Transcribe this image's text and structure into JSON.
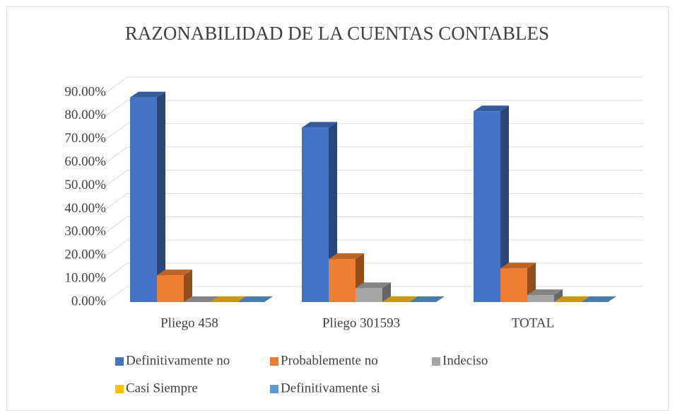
{
  "chart_data": {
    "type": "bar3d",
    "title": "RAZONABILIDAD DE LA CUENTAS CONTABLES",
    "categories": [
      "Pliego 458",
      "Pliego 301593",
      "TOTAL"
    ],
    "series": [
      {
        "name": "Definitivamente no",
        "color": "#4472c4",
        "values": [
          88,
          75,
          82
        ]
      },
      {
        "name": "Probablemente no",
        "color": "#ed7d31",
        "values": [
          11.5,
          18.5,
          14.5
        ]
      },
      {
        "name": "Indeciso",
        "color": "#a5a5a5",
        "values": [
          0,
          6,
          3
        ]
      },
      {
        "name": "Casi Siempre",
        "color": "#ffc000",
        "values": [
          0,
          0,
          0
        ]
      },
      {
        "name": "Definitivamente si",
        "color": "#5b9bd5",
        "values": [
          0,
          0,
          0
        ]
      }
    ],
    "ylim": [
      0,
      90
    ],
    "yticks": [
      {
        "value": 0,
        "label": "0.00%"
      },
      {
        "value": 10,
        "label": "10.00%"
      },
      {
        "value": 20,
        "label": "20.00%"
      },
      {
        "value": 30,
        "label": "30.00%"
      },
      {
        "value": 40,
        "label": "40.00%"
      },
      {
        "value": 50,
        "label": "50.00%"
      },
      {
        "value": 60,
        "label": "60.00%"
      },
      {
        "value": 70,
        "label": "70.00%"
      },
      {
        "value": 80,
        "label": "80.00%"
      },
      {
        "value": 90,
        "label": "90.00%"
      }
    ],
    "grid": true,
    "legend": "bottom"
  }
}
